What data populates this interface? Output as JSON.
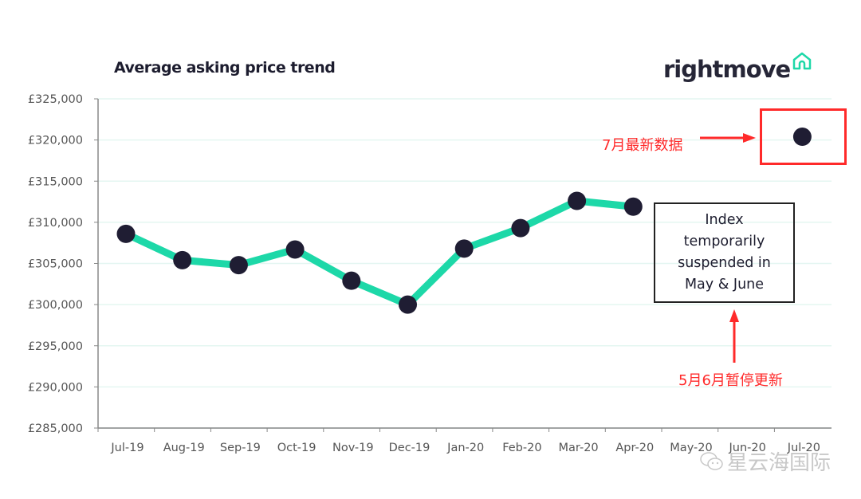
{
  "chart_data": {
    "type": "line",
    "title": "Average asking price trend",
    "categories": [
      "Jul-19",
      "Aug-19",
      "Sep-19",
      "Oct-19",
      "Nov-19",
      "Dec-19",
      "Jan-20",
      "Feb-20",
      "Mar-20",
      "Apr-20",
      "May-20",
      "Jun-20",
      "Jul-20"
    ],
    "values": [
      308600,
      305400,
      304800,
      306700,
      302900,
      300000,
      306800,
      309300,
      312600,
      311900,
      null,
      null,
      320400
    ],
    "ylim": [
      285000,
      325000
    ],
    "yticks": [
      "£325,000",
      "£320,000",
      "£315,000",
      "£310,000",
      "£305,000",
      "£300,000",
      "£295,000",
      "£290,000",
      "£285,000"
    ],
    "ytick_values": [
      325000,
      320000,
      315000,
      310000,
      305000,
      300000,
      295000,
      290000,
      285000
    ],
    "xlabel": "",
    "ylabel": "",
    "grid": true,
    "line_color": "#1dd8a8",
    "marker_color": "#1f1d33",
    "annotations": {
      "note_box": [
        "Index",
        "temporarily",
        "suspended in",
        "May & June"
      ],
      "red_note_latest": "7月最新数据",
      "red_note_suspended": "5月6月暂停更新",
      "red_color": "#ff2a2a"
    }
  },
  "logo": {
    "text": "rightmove",
    "icon": "house-icon",
    "accent": "#1dd8a8"
  },
  "watermark": {
    "text": "星云海国际",
    "icon": "wechat-icon"
  }
}
